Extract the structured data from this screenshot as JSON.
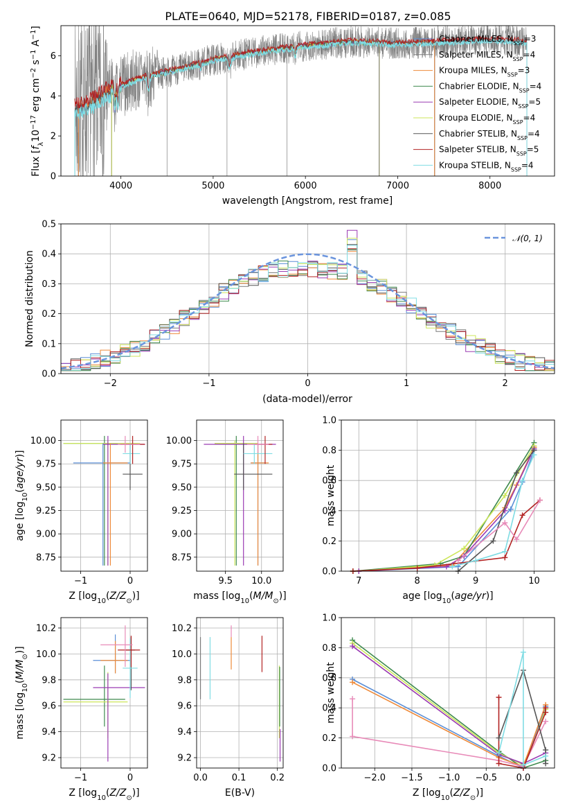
{
  "title": "PLATE=0640, MJD=52178, FIBERID=0187, z=0.085",
  "colors": {
    "chabrier_miles": "#5a8ed6",
    "salpeter_miles": "#7a7a7a",
    "kroupa_miles": "#ee8a3a",
    "chabrier_elodie": "#3e8a4e",
    "salpeter_elodie": "#9a3ab2",
    "kroupa_elodie": "#cce65a",
    "chabrier_stelib": "#555555",
    "salpeter_stelib": "#b22222",
    "kroupa_stelib": "#7fdce3",
    "pink": "#e88ab8",
    "normal": "#6a94dd"
  },
  "chart_data": [
    {
      "id": "spectrum",
      "type": "line",
      "xlabel": "wavelength [Angstrom, rest frame]",
      "ylabel": "Flux [f_λ 10^-17 erg cm^-2 s^-1 A^-1]",
      "xlim": [
        3350,
        8700
      ],
      "ylim": [
        0,
        7.5
      ],
      "xticks": [
        "4000",
        "5000",
        "6000",
        "7000",
        "8000"
      ],
      "yticks": [
        "0",
        "2",
        "4",
        "6"
      ],
      "continuum": [
        [
          3500,
          3.3
        ],
        [
          3700,
          3.7
        ],
        [
          3900,
          4.3
        ],
        [
          4100,
          4.7
        ],
        [
          4300,
          5.0
        ],
        [
          4600,
          5.3
        ],
        [
          5000,
          5.8
        ],
        [
          5500,
          6.2
        ],
        [
          6000,
          6.5
        ],
        [
          6500,
          6.7
        ],
        [
          7000,
          6.6
        ],
        [
          7500,
          6.7
        ],
        [
          8000,
          6.8
        ],
        [
          8400,
          6.7
        ]
      ],
      "legend": [
        "Chabrier MILES, N_SSP=3",
        "Salpeter MILES, N_SSP=4",
        "Kroupa MILES, N_SSP=3",
        "Chabrier ELODIE, N_SSP=4",
        "Salpeter ELODIE, N_SSP=5",
        "Kroupa ELODIE, N_SSP=4",
        "Chabrier STELIB, N_SSP=4",
        "Salpeter STELIB, N_SSP=5",
        "Kroupa STELIB, N_SSP=4"
      ]
    },
    {
      "id": "residuals",
      "type": "histogram",
      "xlabel": "(data-model)/error",
      "ylabel": "Normed distribution",
      "xlim": [
        -2.5,
        2.5
      ],
      "ylim": [
        0,
        0.5
      ],
      "xticks": [
        "−2",
        "−1",
        "0",
        "1",
        "2"
      ],
      "yticks": [
        "0.0",
        "0.1",
        "0.2",
        "0.3",
        "0.4",
        "0.5"
      ],
      "legend": "𝒩(0, 1)"
    },
    {
      "id": "age-vs-Z",
      "type": "scatter",
      "xlabel": "Z [log10(Z/Z☉)]",
      "ylabel": "age [log10(age/yr)]",
      "xlim": [
        -1.4,
        0.35
      ],
      "ylim": [
        8.6,
        10.22
      ],
      "xticks": [
        "−1",
        "0"
      ],
      "yticks": [
        "8.75",
        "9.00",
        "9.25",
        "9.50",
        "9.75",
        "10.00"
      ],
      "points": [
        {
          "s": "chabrier_elodie",
          "x": -0.52,
          "y": 9.97,
          "ex": [
            -1.35,
            0.15
          ],
          "ey": [
            8.66,
            10.05
          ]
        },
        {
          "s": "kroupa_elodie",
          "x": -0.45,
          "y": 9.97,
          "ex": [
            -1.35,
            0.2
          ],
          "ey": [
            8.66,
            10.0
          ]
        },
        {
          "s": "salpeter_elodie",
          "x": -0.45,
          "y": 9.96,
          "ex": [
            -0.55,
            0.3
          ],
          "ey": [
            8.66,
            10.05
          ]
        },
        {
          "s": "chabrier_miles",
          "x": -0.55,
          "y": 9.76,
          "ex": [
            -1.15,
            0.0
          ],
          "ey": [
            8.66,
            9.97
          ]
        },
        {
          "s": "kroupa_miles",
          "x": -0.4,
          "y": 9.76,
          "ex": [
            -0.55,
            -0.05
          ],
          "ey": [
            8.66,
            9.97
          ]
        },
        {
          "s": "chabrier_stelib",
          "x": 0.0,
          "y": 9.64,
          "ex": [
            -0.15,
            0.25
          ],
          "ey": [
            9.47,
            9.97
          ]
        },
        {
          "s": "kroupa_stelib",
          "x": 0.0,
          "y": 9.86,
          "ex": [
            -0.15,
            0.2
          ],
          "ey": [
            9.75,
            9.97
          ]
        },
        {
          "s": "salpeter_stelib",
          "x": 0.05,
          "y": 9.96,
          "ex": [
            -0.2,
            0.3
          ],
          "ey": [
            9.75,
            10.05
          ]
        },
        {
          "s": "pink",
          "x": -0.1,
          "y": 9.96,
          "ex": [
            -0.25,
            0.2
          ],
          "ey": [
            9.87,
            10.05
          ]
        }
      ]
    },
    {
      "id": "age-vs-mass",
      "type": "scatter",
      "xlabel": "mass [log10(M/M☉)]",
      "ylabel": "",
      "xlim": [
        9.1,
        10.3
      ],
      "ylim": [
        8.6,
        10.22
      ],
      "xticks": [
        "9.5",
        "10.0"
      ],
      "yticks": [
        "8.75",
        "9.00",
        "9.25",
        "9.50",
        "9.75",
        "10.00"
      ],
      "points": [
        {
          "s": "chabrier_elodie",
          "x": 9.65,
          "y": 9.97,
          "ex": [
            9.35,
            9.9
          ],
          "ey": [
            8.66,
            10.05
          ]
        },
        {
          "s": "kroupa_elodie",
          "x": 9.63,
          "y": 9.97,
          "ex": [
            9.35,
            9.95
          ],
          "ey": [
            8.66,
            10.0
          ]
        },
        {
          "s": "salpeter_elodie",
          "x": 9.75,
          "y": 9.96,
          "ex": [
            9.2,
            10.2
          ],
          "ey": [
            8.66,
            10.05
          ]
        },
        {
          "s": "chabrier_miles",
          "x": 9.95,
          "y": 9.76,
          "ex": [
            9.85,
            10.05
          ],
          "ey": [
            8.66,
            9.97
          ]
        },
        {
          "s": "kroupa_miles",
          "x": 9.95,
          "y": 9.76,
          "ex": [
            9.85,
            10.1
          ],
          "ey": [
            8.66,
            9.97
          ]
        },
        {
          "s": "chabrier_stelib",
          "x": 9.75,
          "y": 9.64,
          "ex": [
            9.62,
            10.15
          ],
          "ey": [
            9.47,
            9.97
          ]
        },
        {
          "s": "kroupa_stelib",
          "x": 9.9,
          "y": 9.86,
          "ex": [
            9.75,
            10.15
          ],
          "ey": [
            9.75,
            9.97
          ]
        },
        {
          "s": "salpeter_stelib",
          "x": 10.05,
          "y": 9.96,
          "ex": [
            9.9,
            10.15
          ],
          "ey": [
            9.75,
            10.05
          ]
        },
        {
          "s": "pink",
          "x": 9.95,
          "y": 9.96,
          "ex": [
            9.8,
            10.1
          ],
          "ey": [
            9.87,
            10.05
          ]
        }
      ]
    },
    {
      "id": "mass-weight-vs-age",
      "type": "line",
      "xlabel": "age [log10(age/yr)]",
      "ylabel": "mass weight",
      "xlim": [
        6.7,
        10.35
      ],
      "ylim": [
        0,
        1.0
      ],
      "xticks": [
        "7",
        "8",
        "9",
        "10"
      ],
      "yticks": [
        "0.0",
        "0.2",
        "0.4",
        "0.6",
        "0.8",
        "1.0"
      ],
      "series": [
        {
          "s": "chabrier_miles",
          "x": [
            7.0,
            8.7,
            9.6,
            9.8,
            10.0
          ],
          "y": [
            0.0,
            0.03,
            0.41,
            0.59,
            0.8
          ]
        },
        {
          "s": "kroupa_miles",
          "x": [
            6.9,
            8.6,
            9.5,
            9.7,
            10.0
          ],
          "y": [
            0.0,
            0.04,
            0.42,
            0.57,
            0.82
          ]
        },
        {
          "s": "chabrier_elodie",
          "x": [
            6.9,
            8.4,
            8.8,
            10.0
          ],
          "y": [
            0.0,
            0.05,
            0.1,
            0.85
          ]
        },
        {
          "s": "kroupa_elodie",
          "x": [
            7.0,
            8.3,
            8.8,
            9.5,
            10.0
          ],
          "y": [
            0.0,
            0.04,
            0.15,
            0.5,
            0.83
          ]
        },
        {
          "s": "salpeter_elodie",
          "x": [
            7.0,
            8.5,
            8.8,
            9.5,
            10.0
          ],
          "y": [
            0.0,
            0.03,
            0.1,
            0.4,
            0.81
          ]
        },
        {
          "s": "chabrier_stelib",
          "x": [
            8.7,
            9.3,
            9.7,
            10.0
          ],
          "y": [
            0.0,
            0.2,
            0.65,
            0.8
          ]
        },
        {
          "s": "salpeter_stelib",
          "x": [
            6.9,
            8.0,
            9.5,
            9.8,
            10.1
          ],
          "y": [
            0.0,
            0.02,
            0.09,
            0.37,
            0.47
          ]
        },
        {
          "s": "kroupa_stelib",
          "x": [
            8.6,
            9.0,
            9.5,
            9.8,
            10.0
          ],
          "y": [
            0.03,
            0.07,
            0.13,
            0.6,
            0.77
          ]
        },
        {
          "s": "pink",
          "x": [
            8.7,
            9.5,
            9.7,
            10.1
          ],
          "y": [
            0.07,
            0.32,
            0.21,
            0.47
          ]
        }
      ]
    },
    {
      "id": "mass-vs-Z",
      "type": "scatter",
      "xlabel": "Z [log10(Z/Z☉)]",
      "ylabel": "mass [log10(M/M☉)]",
      "xlim": [
        -1.4,
        0.35
      ],
      "ylim": [
        9.12,
        10.28
      ],
      "xticks": [
        "−1",
        "0"
      ],
      "yticks": [
        "9.2",
        "9.4",
        "9.6",
        "9.8",
        "10.0",
        "10.2"
      ],
      "points": [
        {
          "s": "chabrier_elodie",
          "x": -0.52,
          "y": 9.65,
          "ex": [
            -1.35,
            -0.1
          ],
          "ey": [
            9.44,
            9.91
          ]
        },
        {
          "s": "kroupa_elodie",
          "x": -0.45,
          "y": 9.63,
          "ex": [
            -1.35,
            -0.05
          ],
          "ey": [
            9.35,
            9.86
          ]
        },
        {
          "s": "salpeter_elodie",
          "x": -0.45,
          "y": 9.74,
          "ex": [
            -0.75,
            0.3
          ],
          "ey": [
            9.17,
            9.85
          ]
        },
        {
          "s": "chabrier_miles",
          "x": -0.3,
          "y": 9.95,
          "ex": [
            -0.75,
            0.0
          ],
          "ey": [
            9.85,
            10.15
          ]
        },
        {
          "s": "kroupa_miles",
          "x": -0.3,
          "y": 9.95,
          "ex": [
            -0.6,
            -0.05
          ],
          "ey": [
            9.85,
            10.1
          ]
        },
        {
          "s": "chabrier_stelib",
          "x": 0.02,
          "y": 10.03,
          "ex": [
            -0.1,
            0.1
          ],
          "ey": [
            9.72,
            10.13
          ]
        },
        {
          "s": "kroupa_stelib",
          "x": 0.0,
          "y": 9.89,
          "ex": [
            -0.15,
            0.15
          ],
          "ey": [
            9.66,
            10.12
          ]
        },
        {
          "s": "salpeter_stelib",
          "x": 0.02,
          "y": 10.03,
          "ex": [
            -0.25,
            0.2
          ],
          "ey": [
            9.9,
            10.14
          ]
        },
        {
          "s": "pink",
          "x": -0.1,
          "y": 10.07,
          "ex": [
            -0.6,
            0.05
          ],
          "ey": [
            9.9,
            10.22
          ]
        }
      ]
    },
    {
      "id": "mass-vs-EBV",
      "type": "scatter",
      "xlabel": "E(B-V)",
      "ylabel": "",
      "xlim": [
        -0.01,
        0.215
      ],
      "ylim": [
        9.12,
        10.28
      ],
      "xticks": [
        "0.0",
        "0.1",
        "0.2"
      ],
      "yticks": [
        "9.2",
        "9.4",
        "9.6",
        "9.8",
        "10.0",
        "10.2"
      ],
      "points": [
        {
          "s": "salpeter_miles",
          "x": 0.0,
          "y": 9.65,
          "ey": [
            9.65,
            10.13
          ]
        },
        {
          "s": "kroupa_stelib",
          "x": 0.025,
          "y": 9.65,
          "ey": [
            9.65,
            10.13
          ]
        },
        {
          "s": "kroupa_miles",
          "x": 0.08,
          "y": 9.88,
          "ey": [
            9.88,
            10.13
          ]
        },
        {
          "s": "pink",
          "x": 0.08,
          "y": 10.2,
          "ey": [
            10.13,
            10.22
          ]
        },
        {
          "s": "salpeter_stelib",
          "x": 0.16,
          "y": 9.86,
          "ey": [
            9.86,
            10.14
          ]
        },
        {
          "s": "kroupa_elodie",
          "x": 0.205,
          "y": 9.35,
          "ey": [
            9.35,
            9.91
          ]
        },
        {
          "s": "chabrier_elodie",
          "x": 0.206,
          "y": 9.44,
          "ey": [
            9.44,
            9.9
          ]
        },
        {
          "s": "salpeter_elodie",
          "x": 0.207,
          "y": 9.17,
          "ey": [
            9.17,
            9.42
          ]
        }
      ]
    },
    {
      "id": "mass-weight-vs-Z",
      "type": "line",
      "xlabel": "Z [log10(Z/Z☉)]",
      "ylabel": "mass weight",
      "xlim": [
        -2.45,
        0.42
      ],
      "ylim": [
        0,
        1.0
      ],
      "xticks": [
        "−2.0",
        "−1.5",
        "−1.0",
        "−0.5",
        "0.0"
      ],
      "yticks": [
        "0.0",
        "0.2",
        "0.4",
        "0.6",
        "0.8",
        "1.0"
      ],
      "series": [
        {
          "s": "chabrier_elodie",
          "x": [
            -2.3,
            -0.33,
            0.0,
            0.3
          ],
          "y": [
            0.85,
            0.11,
            0.0,
            0.05
          ]
        },
        {
          "s": "kroupa_elodie",
          "x": [
            -2.3,
            -0.33,
            0.0,
            0.3
          ],
          "y": [
            0.83,
            0.1,
            0.02,
            0.39
          ]
        },
        {
          "s": "salpeter_elodie",
          "x": [
            -2.3,
            -0.33,
            0.0,
            0.3
          ],
          "y": [
            0.81,
            0.09,
            0.03,
            0.1
          ]
        },
        {
          "s": "chabrier_miles",
          "x": [
            -2.3,
            -0.33,
            0.0,
            0.3
          ],
          "y": [
            0.59,
            0.08,
            0.0,
            0.41
          ]
        },
        {
          "s": "kroupa_miles",
          "x": [
            -2.3,
            -0.33,
            0.0,
            0.3
          ],
          "y": [
            0.57,
            0.07,
            0.01,
            0.42
          ]
        },
        {
          "s": "pink",
          "x": [
            -2.3,
            -2.3,
            -0.33,
            0.0,
            0.3
          ],
          "y": [
            0.46,
            0.21,
            0.05,
            0.01,
            0.31
          ]
        },
        {
          "s": "salpeter_stelib",
          "x": [
            -0.33,
            -0.33,
            0.0,
            0.3,
            0.3
          ],
          "y": [
            0.47,
            0.03,
            0.0,
            0.37,
            0.4
          ]
        },
        {
          "s": "chabrier_stelib",
          "x": [
            -0.33,
            0.0,
            0.3,
            0.3
          ],
          "y": [
            0.2,
            0.65,
            0.12,
            0.03
          ]
        },
        {
          "s": "kroupa_stelib",
          "x": [
            -0.33,
            0.0,
            0.0,
            0.3
          ],
          "y": [
            0.1,
            0.77,
            0.02,
            0.08
          ]
        }
      ]
    }
  ]
}
